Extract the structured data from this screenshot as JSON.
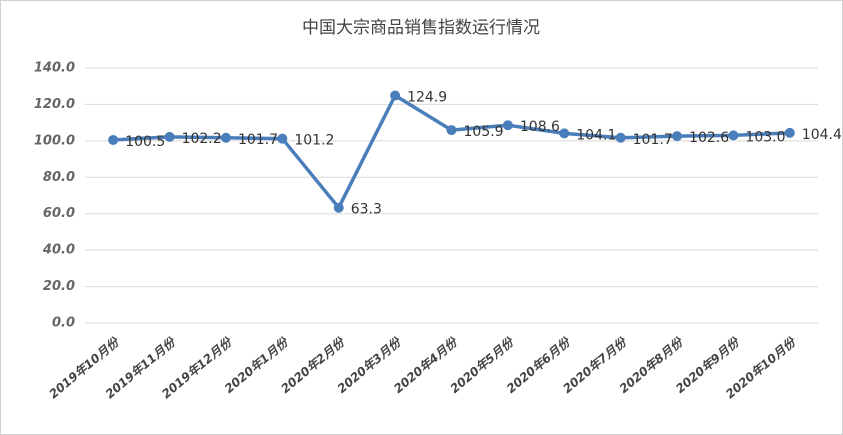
{
  "chart_data": {
    "type": "line",
    "title": "中国大宗商品销售指数运行情况",
    "categories": [
      "2019年10月份",
      "2019年11月份",
      "2019年12月份",
      "2020年1月份",
      "2020年2月份",
      "2020年3月份",
      "2020年4月份",
      "2020年5月份",
      "2020年6月份",
      "2020年7月份",
      "2020年8月份",
      "2020年9月份",
      "2020年10月份"
    ],
    "values": [
      100.5,
      102.2,
      101.7,
      101.2,
      63.3,
      124.9,
      105.9,
      108.6,
      104.1,
      101.7,
      102.6,
      103.0,
      104.4
    ],
    "value_labels": [
      "100.5",
      "102.2",
      "101.7",
      "101.2",
      "63.3",
      "124.9",
      "105.9",
      "108.6",
      "104.1",
      "101.7",
      "102.6",
      "103.0",
      "104.4"
    ],
    "color": "#4a7ebb",
    "ylim": [
      0,
      140
    ],
    "yticks": [
      {
        "value": 0,
        "label": "0.0"
      },
      {
        "value": 20,
        "label": "20.0"
      },
      {
        "value": 40,
        "label": "40.0"
      },
      {
        "value": 60,
        "label": "60.0"
      },
      {
        "value": 80,
        "label": "80.0"
      },
      {
        "value": 100,
        "label": "100.0"
      },
      {
        "value": 120,
        "label": "120.0"
      },
      {
        "value": 140,
        "label": "140.0"
      }
    ],
    "grid": true
  }
}
